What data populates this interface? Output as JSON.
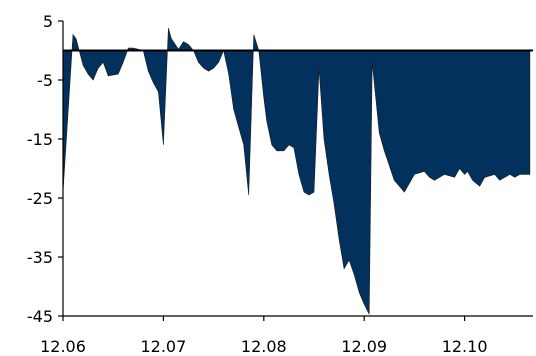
{
  "chart_data": {
    "type": "area",
    "title": "",
    "xlabel": "",
    "ylabel": "",
    "ylim": [
      -45,
      5
    ],
    "yticks": [
      5,
      -5,
      -15,
      -25,
      -35,
      -45
    ],
    "xtick_labels": [
      "12.06",
      "12.07",
      "12.08",
      "12.09",
      "12.10"
    ],
    "grid": false,
    "legend": "none",
    "colors": {
      "fill": "#02315E",
      "axis": "#000000",
      "zero_line": "#000000"
    },
    "series": [
      {
        "x": [
          0,
          0.1,
          0.13,
          0.2,
          0.25,
          0.3,
          0.35,
          0.4,
          0.45,
          0.55,
          0.6,
          0.65,
          0.7,
          0.8,
          0.85,
          0.9,
          0.95,
          1,
          1.05,
          1.08,
          1.15,
          1.2,
          1.25,
          1.3,
          1.35,
          1.4,
          1.45,
          1.5,
          1.55,
          1.6,
          1.65,
          1.7,
          1.8,
          1.85,
          1.9,
          1.95,
          2,
          2.03,
          2.08,
          2.13,
          2.2,
          2.25,
          2.3,
          2.35,
          2.4,
          2.45,
          2.5,
          2.55,
          2.6,
          2.65,
          2.7,
          2.75,
          2.8,
          2.85,
          2.9,
          2.95,
          3,
          3.05,
          3.08,
          3.15,
          3.2,
          3.3,
          3.4,
          3.5,
          3.6,
          3.65,
          3.7,
          3.8,
          3.9,
          3.95,
          4,
          4.03,
          4.08,
          4.15,
          4.2,
          4.3,
          4.35,
          4.4,
          4.45,
          4.5,
          4.55,
          4.65
        ],
        "y": [
          -24,
          2.7,
          2,
          -2.5,
          -4,
          -5,
          -3,
          -2,
          -4.3,
          -4,
          -2,
          0.4,
          0.4,
          0,
          -3.5,
          -5.5,
          -7,
          -16,
          3.8,
          2,
          0.2,
          1.5,
          1,
          0,
          -2,
          -3,
          -3.5,
          -3,
          -2,
          0,
          -4,
          -10,
          -16,
          -24.5,
          2.7,
          0,
          -8,
          -12,
          -16,
          -17,
          -17,
          -16,
          -16.5,
          -21,
          -24,
          -24.5,
          -24,
          -3,
          -15,
          -21,
          -26,
          -32,
          -37,
          -35.5,
          -38,
          -41,
          -43,
          -44.7,
          -2,
          -14,
          -17,
          -22,
          -24,
          -21,
          -20.5,
          -21.5,
          -22,
          -21,
          -21.5,
          -20,
          -21,
          -20.5,
          -22,
          -23,
          -21.5,
          -21,
          -22,
          -21.5,
          -21,
          -21.5,
          -21,
          -21
        ]
      }
    ]
  }
}
